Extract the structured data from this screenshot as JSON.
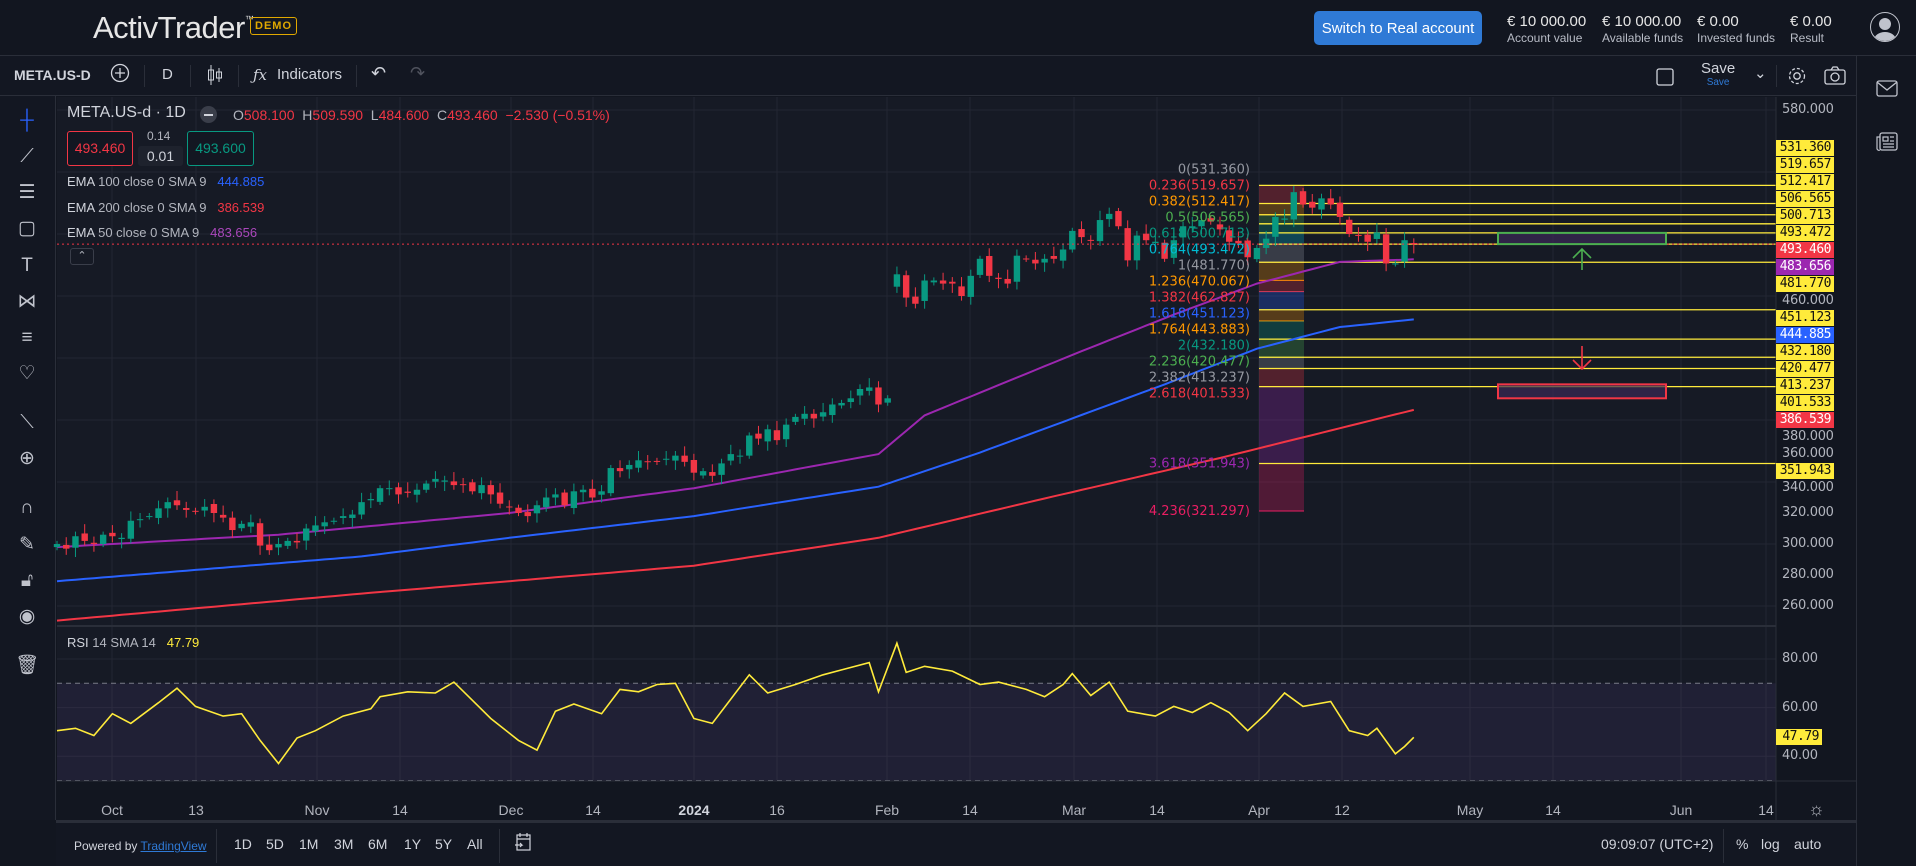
{
  "header": {
    "logo": "ActivTrader",
    "logo_tm": "™",
    "badge": "DEMO",
    "switch_button": "Switch to Real account",
    "stats": [
      {
        "value": "€ 10 000.00",
        "label": "Account value"
      },
      {
        "value": "€ 10 000.00",
        "label": "Available funds"
      },
      {
        "value": "€ 0.00",
        "label": "Invested funds"
      },
      {
        "value": "€ 0.00",
        "label": "Result"
      }
    ]
  },
  "toolbar": {
    "symbol": "META.US-D",
    "interval": "D",
    "indicators": "Indicators",
    "save": "Save",
    "save_sub": "Save"
  },
  "legend": {
    "title": "META.US-d · 1D",
    "o_label": "O",
    "o": "508.100",
    "h_label": "H",
    "h": "509.590",
    "l_label": "L",
    "l": "484.600",
    "c_label": "C",
    "c": "493.460",
    "change": "−2.530 (−0.51%)",
    "sell": "493.460",
    "spread_top": "0.14",
    "spread": "0.01",
    "buy": "493.600",
    "emas": [
      {
        "name": "EMA",
        "params": "100 close 0 SMA 9",
        "value": "444.885",
        "color": "#2962ff"
      },
      {
        "name": "EMA",
        "params": "200 close 0 SMA 9",
        "value": "386.539",
        "color": "#f23645"
      },
      {
        "name": "EMA",
        "params": "50 close 0 SMA 9",
        "value": "483.656",
        "color": "#9c27b0"
      }
    ],
    "rsi": {
      "name": "RSI",
      "params": "14 SMA 14",
      "value": "47.79"
    }
  },
  "colors": {
    "up": "#089981",
    "down": "#f23645",
    "fib_line": "#ffeb3b",
    "ema50": "#9c27b0",
    "ema100": "#2962ff",
    "ema200": "#f23645",
    "rsi": "#ffeb3b",
    "accent": "#2f7ad6"
  },
  "chart_data": {
    "type": "candlestick",
    "closes": [
      300,
      297,
      305,
      302,
      300,
      306,
      305,
      304,
      315,
      316,
      318,
      323,
      327,
      325,
      322,
      321,
      324,
      320,
      317,
      309,
      313,
      314,
      299,
      296,
      300,
      302,
      301,
      310,
      312,
      314,
      315,
      318,
      319,
      327,
      329,
      336,
      336,
      332,
      333,
      335,
      339,
      342,
      341,
      338,
      338,
      334,
      338,
      332,
      326,
      324,
      320,
      318,
      325,
      330,
      332,
      325,
      334,
      335,
      330,
      334,
      349,
      347,
      351,
      354,
      353,
      353,
      355,
      357,
      353,
      346,
      347,
      344,
      352,
      358,
      357,
      370,
      368,
      374,
      367,
      377,
      382,
      384,
      381,
      385,
      390,
      391,
      394,
      400,
      401,
      390,
      394,
      474,
      459,
      455,
      470,
      470,
      468,
      468,
      460,
      473,
      484,
      473,
      471,
      468,
      486,
      484,
      481,
      484,
      484,
      490,
      502,
      498,
      496,
      509,
      513,
      505,
      483,
      499,
      496,
      495,
      484,
      496,
      505,
      505,
      509,
      508,
      503,
      495,
      494,
      485,
      491,
      497,
      511,
      510,
      527,
      519,
      517,
      523,
      519,
      511,
      500,
      499,
      495,
      501,
      481,
      481,
      496,
      493.46
    ],
    "ema50": [
      [
        0,
        298
      ],
      [
        24,
        306
      ],
      [
        49,
        320
      ],
      [
        69,
        336
      ],
      [
        89,
        358
      ],
      [
        94,
        383
      ],
      [
        110,
        422
      ],
      [
        121,
        448
      ],
      [
        130,
        468
      ],
      [
        139,
        482
      ],
      [
        147,
        483.656
      ]
    ],
    "ema100": [
      [
        0,
        276
      ],
      [
        33,
        292
      ],
      [
        49,
        304
      ],
      [
        69,
        318
      ],
      [
        89,
        337
      ],
      [
        100,
        359
      ],
      [
        120,
        403
      ],
      [
        130,
        426
      ],
      [
        139,
        440
      ],
      [
        147,
        444.885
      ]
    ],
    "ema200": [
      [
        0,
        250.6
      ],
      [
        33,
        268
      ],
      [
        69,
        286
      ],
      [
        89,
        304
      ],
      [
        106,
        328
      ],
      [
        126,
        355.5
      ],
      [
        147,
        386.539
      ]
    ],
    "rsi": [
      [
        0,
        50.5
      ],
      [
        2,
        51.5
      ],
      [
        4,
        48.5
      ],
      [
        6,
        57.5
      ],
      [
        8,
        53.5
      ],
      [
        11,
        62
      ],
      [
        13,
        68
      ],
      [
        15,
        60.5
      ],
      [
        18,
        56.5
      ],
      [
        20,
        57.5
      ],
      [
        22,
        46.5
      ],
      [
        24,
        37
      ],
      [
        26,
        47.5
      ],
      [
        28,
        50.5
      ],
      [
        31,
        56.5
      ],
      [
        34,
        59.5
      ],
      [
        35,
        64.5
      ],
      [
        38,
        66.5
      ],
      [
        41,
        66
      ],
      [
        43,
        70.5
      ],
      [
        45,
        63
      ],
      [
        47,
        55.5
      ],
      [
        50,
        46.5
      ],
      [
        52,
        42.5
      ],
      [
        54,
        58.5
      ],
      [
        56,
        61.5
      ],
      [
        59,
        57.5
      ],
      [
        61,
        67.5
      ],
      [
        63,
        66.5
      ],
      [
        65,
        69.5
      ],
      [
        67,
        70
      ],
      [
        69,
        55.5
      ],
      [
        71,
        53.5
      ],
      [
        73,
        63.5
      ],
      [
        75,
        73.5
      ],
      [
        77,
        66
      ],
      [
        80,
        69.5
      ],
      [
        83,
        73.5
      ],
      [
        85,
        75.5
      ],
      [
        88,
        78.5
      ],
      [
        89,
        66.5
      ],
      [
        91,
        86.5
      ],
      [
        92,
        74.5
      ],
      [
        94,
        77
      ],
      [
        97,
        75
      ],
      [
        100,
        69.5
      ],
      [
        102,
        70.5
      ],
      [
        105,
        67.5
      ],
      [
        107,
        64.5
      ],
      [
        109,
        69.5
      ],
      [
        110,
        74
      ],
      [
        112,
        65
      ],
      [
        114,
        70.5
      ],
      [
        116,
        58.5
      ],
      [
        119,
        56.5
      ],
      [
        121,
        60.5
      ],
      [
        123,
        58
      ],
      [
        125,
        62
      ],
      [
        127,
        58
      ],
      [
        129,
        50.5
      ],
      [
        131,
        57.5
      ],
      [
        133,
        66
      ],
      [
        135,
        60.5
      ],
      [
        138,
        62.5
      ],
      [
        140,
        50.5
      ],
      [
        142,
        48.5
      ],
      [
        143,
        51.5
      ],
      [
        145,
        41
      ],
      [
        146,
        44
      ],
      [
        147,
        47.79
      ]
    ],
    "fib": [
      {
        "level": "0",
        "price": "531.360",
        "color": "#9598a1"
      },
      {
        "level": "0.236",
        "price": "519.657",
        "color": "#f23645"
      },
      {
        "level": "0.382",
        "price": "512.417",
        "color": "#ff9800"
      },
      {
        "level": "0.5",
        "price": "506.565",
        "color": "#4caf50"
      },
      {
        "level": "0.618",
        "price": "500.713",
        "color": "#089981"
      },
      {
        "level": "0.764",
        "price": "493.472",
        "color": "#00bcd4"
      },
      {
        "level": "1",
        "price": "481.770",
        "color": "#9598a1"
      },
      {
        "level": "1.236",
        "price": "470.067",
        "color": "#ff9800"
      },
      {
        "level": "1.382",
        "price": "462.827",
        "color": "#f23645"
      },
      {
        "level": "1.618",
        "price": "451.123",
        "color": "#2962ff"
      },
      {
        "level": "1.764",
        "price": "443.883",
        "color": "#ff9800"
      },
      {
        "level": "2",
        "price": "432.180",
        "color": "#089981"
      },
      {
        "level": "2.236",
        "price": "420.477",
        "color": "#4caf50"
      },
      {
        "level": "2.382",
        "price": "413.237",
        "color": "#9598a1"
      },
      {
        "level": "2.618",
        "price": "401.533",
        "color": "#f23645"
      },
      {
        "level": "3.618",
        "price": "351.943",
        "color": "#9c27b0"
      },
      {
        "level": "4.236",
        "price": "321.297",
        "color": "#e91e63"
      }
    ],
    "yellow_lines": [
      531.36,
      519.657,
      512.417,
      506.565,
      500.713,
      493.472,
      481.77,
      451.123,
      432.18,
      420.477,
      413.237,
      401.533,
      351.943
    ],
    "target_zones": [
      {
        "color": "#4caf50",
        "top": 500.713,
        "bottom": 493.472,
        "arrow": "up"
      },
      {
        "color": "#f23645",
        "top": 403,
        "bottom": 394,
        "arrow": "down"
      }
    ],
    "price_axis": [
      "580.000",
      "460.000",
      "380.000",
      "360.000",
      "340.000",
      "320.000",
      "300.000",
      "280.000",
      "260.000"
    ],
    "price_tags": [
      {
        "v": "531.360",
        "bg": "#ffeb3b"
      },
      {
        "v": "519.657",
        "bg": "#ffeb3b"
      },
      {
        "v": "512.417",
        "bg": "#ffeb3b"
      },
      {
        "v": "506.565",
        "bg": "#ffeb3b"
      },
      {
        "v": "500.713",
        "bg": "#ffeb3b"
      },
      {
        "v": "493.472",
        "bg": "#ffeb3b"
      },
      {
        "v": "493.460",
        "bg": "#f23645",
        "fg": "#fff"
      },
      {
        "v": "483.656",
        "bg": "#9c27b0",
        "fg": "#fff"
      },
      {
        "v": "481.770",
        "bg": "#ffeb3b"
      },
      {
        "v": "451.123",
        "bg": "#ffeb3b"
      },
      {
        "v": "444.885",
        "bg": "#2962ff",
        "fg": "#fff"
      },
      {
        "v": "432.180",
        "bg": "#ffeb3b"
      },
      {
        "v": "420.477",
        "bg": "#ffeb3b"
      },
      {
        "v": "413.237",
        "bg": "#ffeb3b"
      },
      {
        "v": "401.533",
        "bg": "#ffeb3b"
      },
      {
        "v": "386.539",
        "bg": "#f23645",
        "fg": "#fff"
      },
      {
        "v": "351.943",
        "bg": "#ffeb3b"
      }
    ],
    "rsi_axis": [
      "80.00",
      "60.00",
      "40.00"
    ],
    "rsi_tag": "47.79",
    "rsi_bands": [
      70,
      30
    ],
    "time_axis": [
      "Oct",
      "13",
      "Nov",
      "14",
      "Dec",
      "14",
      "2024",
      "16",
      "Feb",
      "14",
      "Mar",
      "14",
      "Apr",
      "12",
      "May",
      "14",
      "Jun",
      "14"
    ],
    "current_price": 493.46
  },
  "bottom": {
    "powered": "Powered by ",
    "tradingview": "TradingView",
    "ranges": [
      "1D",
      "5D",
      "1M",
      "3M",
      "6M",
      "1Y",
      "5Y",
      "All"
    ],
    "time": "09:09:07 (UTC+2)",
    "pct": "%",
    "log": "log",
    "auto": "auto"
  }
}
